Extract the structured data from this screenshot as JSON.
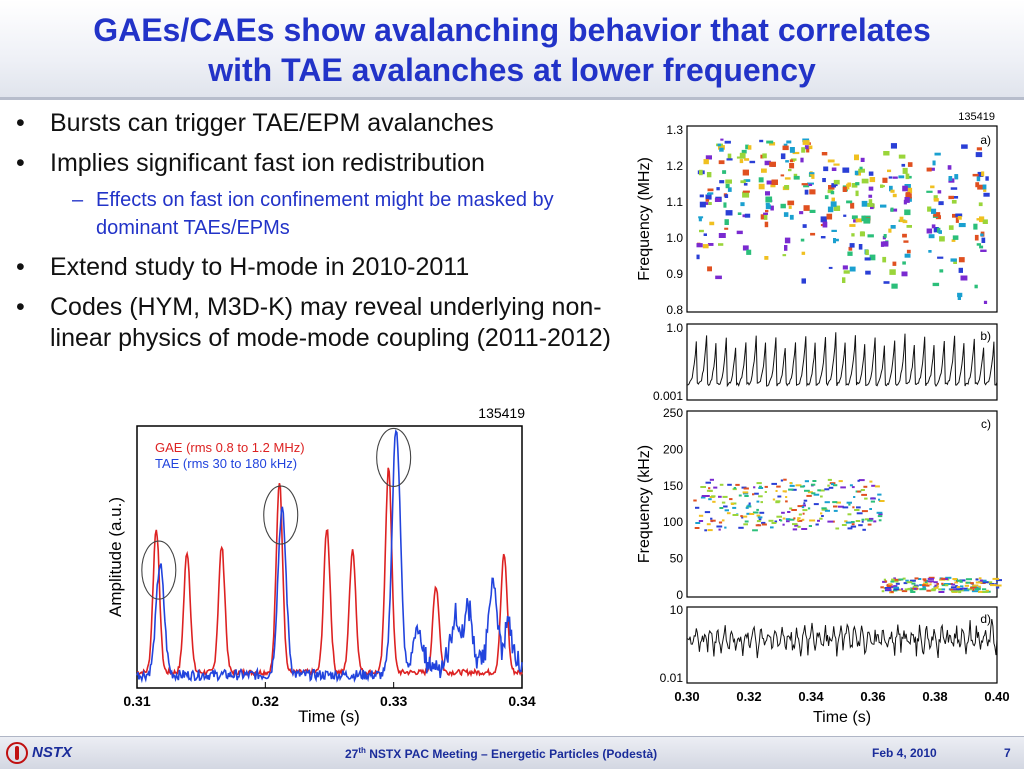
{
  "slide": {
    "title_lines": [
      "GAEs/CAEs show avalanching behavior that correlates",
      "with TAE avalanches at lower frequency"
    ],
    "bullets": {
      "b1": "Bursts can trigger TAE/EPM avalanches",
      "b2": "Implies significant fast ion redistribution",
      "b2_sub": "Effects on fast ion confinement might be masked by dominant TAEs/EPMs",
      "b3": "Extend study to H-mode in 2010-2011",
      "b4": "Codes (HYM, M3D-K) may reveal underlying non-linear physics of mode-mode coupling (2011-2012)"
    },
    "bullet_glyph": "•",
    "dash_glyph": "–"
  },
  "footer": {
    "logo": "NSTX",
    "meeting_prefix": "27",
    "meeting_sup": "th",
    "meeting_rest": " NSTX PAC Meeting – Energetic Particles (Podestà)",
    "date": "Feb 4, 2010",
    "page": "7"
  },
  "colors": {
    "title": "#2233c8",
    "gae": "#dd2222",
    "tae": "#2244dd",
    "sub_bullet": "#2233c8"
  },
  "chart_data": [
    {
      "type": "line",
      "shot": "135419",
      "xlabel": "Time (s)",
      "ylabel": "Amplitude (a.u.)",
      "xlim": [
        0.31,
        0.34
      ],
      "x_ticks": [
        "0.31",
        "0.32",
        "0.33",
        "0.34"
      ],
      "legend_placement": "top-left",
      "series": [
        {
          "name": "GAE (rms 0.8 to 1.2 MHz)",
          "color": "#dd2222",
          "peaks": [
            {
              "x": 0.3115,
              "y": 0.55
            },
            {
              "x": 0.3139,
              "y": 0.46
            },
            {
              "x": 0.3166,
              "y": 0.48
            },
            {
              "x": 0.3211,
              "y": 0.73
            },
            {
              "x": 0.3248,
              "y": 0.55
            },
            {
              "x": 0.3268,
              "y": 0.47
            },
            {
              "x": 0.3296,
              "y": 0.78
            },
            {
              "x": 0.3333,
              "y": 0.33
            },
            {
              "x": 0.3386,
              "y": 0.45
            }
          ]
        },
        {
          "name": "TAE  (rms 30 to 180 kHz)",
          "color": "#2244dd",
          "peaks": [
            {
              "x": 0.3118,
              "y": 0.42
            },
            {
              "x": 0.3213,
              "y": 0.63
            },
            {
              "x": 0.3302,
              "y": 0.95
            },
            {
              "x": 0.3318,
              "y": 0.17
            },
            {
              "x": 0.3348,
              "y": 0.18
            },
            {
              "x": 0.3358,
              "y": 0.22
            },
            {
              "x": 0.3377,
              "y": 0.32
            },
            {
              "x": 0.3389,
              "y": 0.15
            }
          ]
        }
      ]
    },
    {
      "type": "heatmap",
      "shot": "135419",
      "panel": "a)",
      "ylabel": "Frequency (MHz)",
      "ylim": [
        0.8,
        1.3
      ],
      "y_ticks": [
        "1.3",
        "1.2",
        "1.1",
        "1.0",
        "0.9",
        "0.8"
      ]
    },
    {
      "type": "line",
      "panel": "b)",
      "yscale": "log",
      "y_ticks": [
        "1.0",
        "0.001"
      ]
    },
    {
      "type": "heatmap",
      "panel": "c)",
      "ylabel": "Frequency (kHz)",
      "ylim": [
        0,
        250
      ],
      "y_ticks": [
        "250",
        "200",
        "150",
        "100",
        "50",
        "0"
      ]
    },
    {
      "type": "line",
      "panel": "d)",
      "xlabel": "Time (s)",
      "yscale": "log",
      "y_ticks": [
        "10",
        "0.01"
      ],
      "xlim": [
        0.3,
        0.4
      ],
      "x_ticks": [
        "0.30",
        "0.32",
        "0.34",
        "0.36",
        "0.38",
        "0.40"
      ]
    }
  ]
}
